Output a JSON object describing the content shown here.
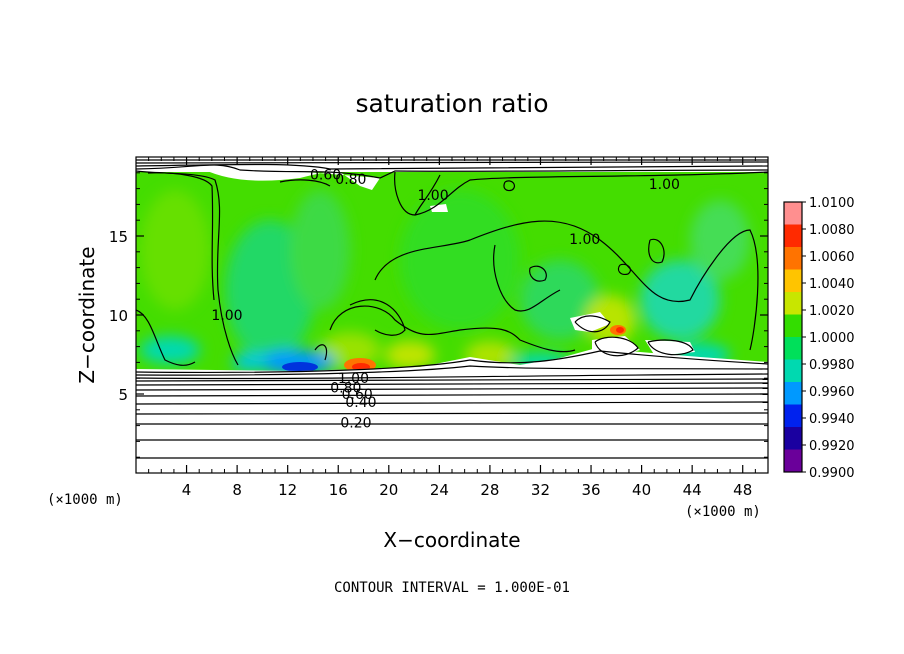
{
  "chart_data": {
    "type": "heatmap",
    "title": "saturation ratio",
    "xlabel": "X−coordinate",
    "ylabel": "Z−coordinate",
    "x_unit_label": "(×1000 m)",
    "y_unit_label": "(×1000 m)",
    "xlim": [
      0,
      50
    ],
    "ylim": [
      0,
      20
    ],
    "x_ticks": [
      4,
      8,
      12,
      16,
      20,
      24,
      28,
      32,
      36,
      40,
      44,
      48
    ],
    "y_ticks": [
      5,
      10,
      15
    ],
    "colorbar": {
      "ticks": [
        "1.0100",
        "1.0080",
        "1.0060",
        "1.0040",
        "1.0020",
        "1.0000",
        "0.9980",
        "0.9960",
        "0.9940",
        "0.9920",
        "0.9900"
      ],
      "colors": [
        "#ff8f8f",
        "#ff2a00",
        "#ff7300",
        "#ffc400",
        "#c8e600",
        "#33dd00",
        "#00e05a",
        "#00d9b0",
        "#0099ff",
        "#0022ee",
        "#1a00a0",
        "#6a009a"
      ]
    },
    "contour_labels": [
      {
        "text": "0.60",
        "x": 15.0,
        "z": 18.9
      },
      {
        "text": "0.80",
        "x": 17.0,
        "z": 18.6
      },
      {
        "text": "1.00",
        "x": 41.8,
        "z": 18.3
      },
      {
        "text": "1.00",
        "x": 23.5,
        "z": 17.6
      },
      {
        "text": "1.00",
        "x": 35.5,
        "z": 14.8
      },
      {
        "text": "1.00",
        "x": 7.2,
        "z": 10.0
      },
      {
        "text": "1.00",
        "x": 17.2,
        "z": 6.0
      },
      {
        "text": "0.80",
        "x": 16.6,
        "z": 5.4
      },
      {
        "text": "0.60",
        "x": 17.5,
        "z": 5.0
      },
      {
        "text": "0.40",
        "x": 17.8,
        "z": 4.5
      },
      {
        "text": "0.20",
        "x": 17.4,
        "z": 3.2
      }
    ],
    "footer": "CONTOUR INTERVAL = 1.000E-01"
  }
}
